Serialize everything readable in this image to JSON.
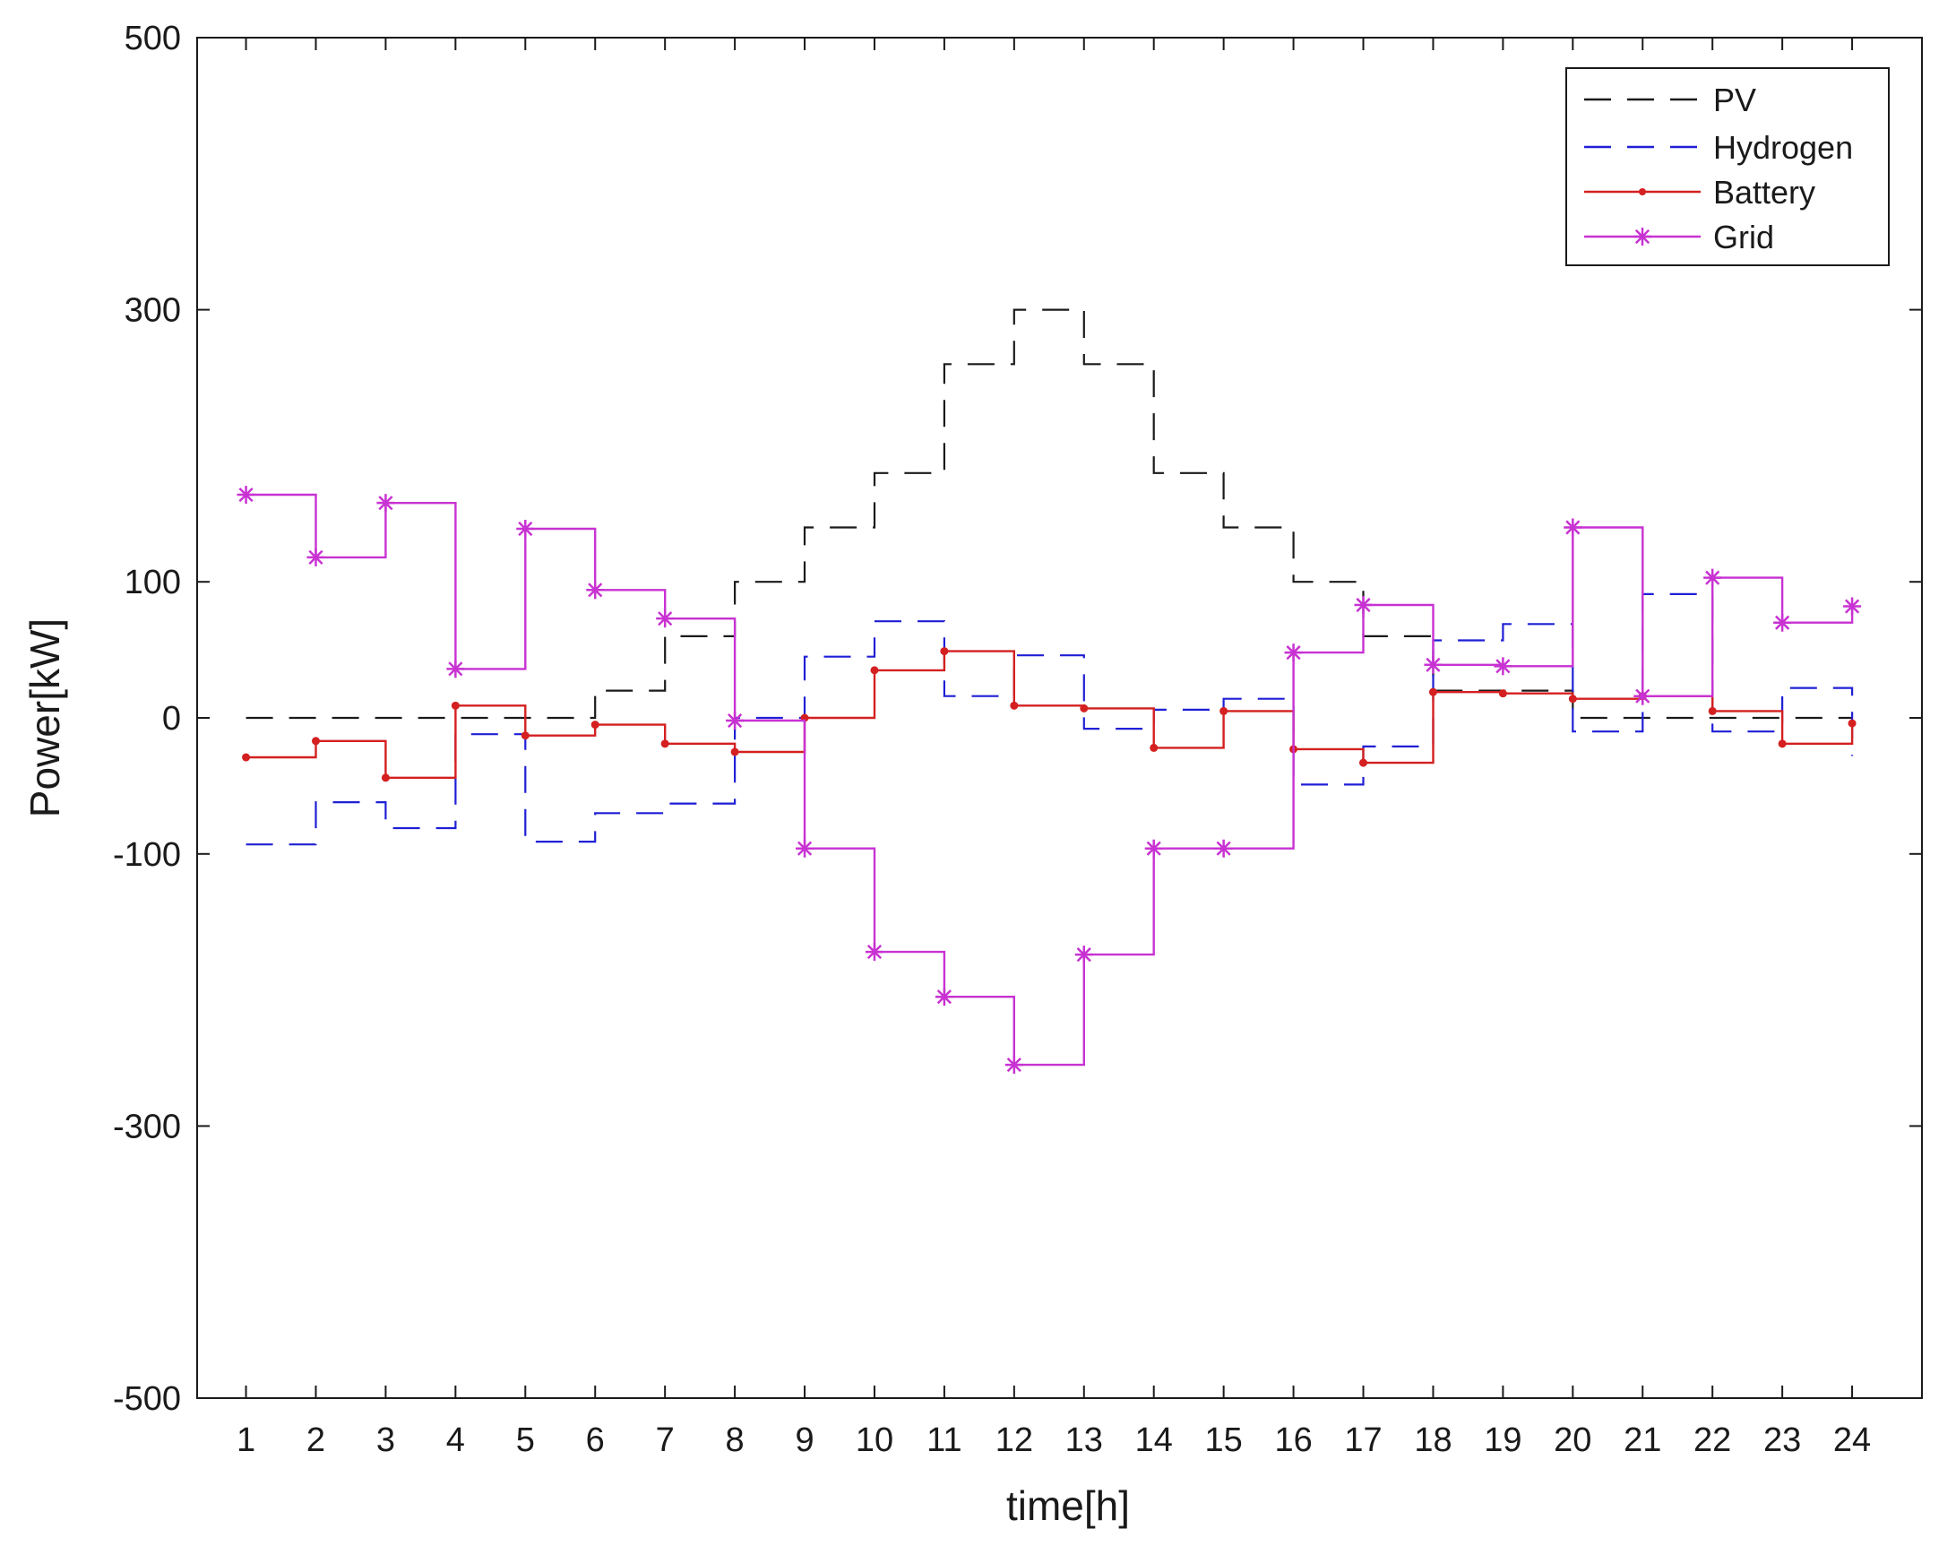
{
  "chart_data": {
    "type": "line",
    "step": true,
    "title": "",
    "xlabel": "time[h]",
    "ylabel": "Power[kW]",
    "xlim": [
      0.3,
      25
    ],
    "ylim": [
      -500,
      500
    ],
    "x": [
      1,
      2,
      3,
      4,
      5,
      6,
      7,
      8,
      9,
      10,
      11,
      12,
      13,
      14,
      15,
      16,
      17,
      18,
      19,
      20,
      21,
      22,
      23,
      24
    ],
    "xticks": [
      "1",
      "2",
      "3",
      "4",
      "5",
      "6",
      "7",
      "8",
      "9",
      "10",
      "11",
      "12",
      "13",
      "14",
      "15",
      "16",
      "17",
      "18",
      "19",
      "20",
      "21",
      "22",
      "23",
      "24"
    ],
    "yticks": [
      500,
      300,
      100,
      0,
      -100,
      -300,
      -500
    ],
    "ytick_labels": [
      "500",
      "300",
      "100",
      "0",
      "-100",
      "-300",
      "-500"
    ],
    "legend_position": "top-right",
    "series": [
      {
        "name": "PV",
        "color": "#1a1a1a",
        "style": "dashed",
        "marker": "none",
        "values": [
          0,
          0,
          0,
          0,
          0,
          20,
          60,
          100,
          140,
          180,
          260,
          300,
          260,
          180,
          140,
          100,
          60,
          20,
          20,
          0,
          0,
          0,
          0,
          0
        ]
      },
      {
        "name": "Hydrogen",
        "color": "#1f1fd6",
        "style": "dashed",
        "marker": "none",
        "values": [
          -93,
          -62,
          -81,
          -12,
          -91,
          -70,
          -63,
          0,
          45,
          71,
          16,
          46,
          -8,
          6,
          14,
          -49,
          -21,
          57,
          69,
          -10,
          91,
          -10,
          22,
          -28
        ]
      },
      {
        "name": "Battery",
        "color": "#d42020",
        "style": "solid",
        "marker": "dot",
        "values": [
          -29,
          -17,
          -44,
          9,
          -13,
          -5,
          -19,
          -25,
          0,
          35,
          49,
          9,
          7,
          -22,
          5,
          -23,
          -33,
          19,
          18,
          14,
          16,
          5,
          -19,
          -4
        ]
      },
      {
        "name": "Grid",
        "color": "#c832d2",
        "style": "solid",
        "marker": "asterisk",
        "values": [
          164,
          118,
          158,
          36,
          139,
          94,
          73,
          -2,
          -96,
          -172,
          -205,
          -255,
          -174,
          -96,
          -96,
          48,
          83,
          39,
          38,
          140,
          16,
          103,
          70,
          82
        ]
      }
    ]
  }
}
